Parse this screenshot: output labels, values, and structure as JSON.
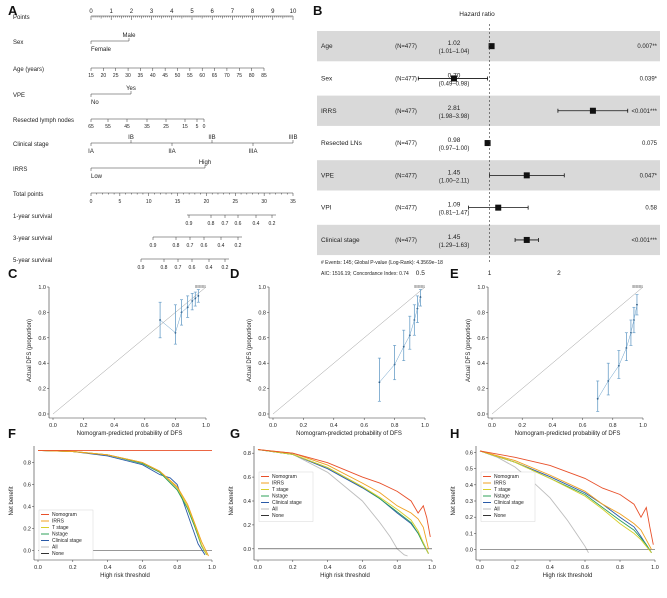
{
  "colors": {
    "nomogram": "#e8502a",
    "irrs": "#f0a020",
    "tstage": "#d8cf2a",
    "nstage": "#2fa05a",
    "clinical": "#2a5aa8",
    "all": "#bdbdbd",
    "none": "#333333",
    "calib": "#6a9fc8",
    "band": "#d9d9d9"
  },
  "panels": {
    "A": "A",
    "B": "B",
    "C": "C",
    "D": "D",
    "E": "E",
    "F": "F",
    "G": "G",
    "H": "H"
  },
  "nomogram": {
    "rows": [
      {
        "label": "Points",
        "ticks": [
          "0",
          "1",
          "2",
          "3",
          "4",
          "5",
          "6",
          "7",
          "8",
          "9",
          "10"
        ]
      },
      {
        "label": "Sex",
        "upper": "Male",
        "lower": "Female"
      },
      {
        "label": "Age (years)",
        "ticks": [
          "15",
          "20",
          "25",
          "30",
          "35",
          "40",
          "45",
          "50",
          "55",
          "60",
          "65",
          "70",
          "75",
          "80",
          "85"
        ]
      },
      {
        "label": "VPE",
        "upper": "Yes",
        "lower": "No"
      },
      {
        "label": "Resected lymph nodes",
        "ticks": [
          "65",
          "55",
          "45",
          "35",
          "25",
          "15",
          "5",
          "0"
        ]
      },
      {
        "label": "Clinical stage",
        "upper": [
          "IB",
          "IIB",
          "IIIB"
        ],
        "lower": [
          "IA",
          "IIA",
          "IIIA"
        ]
      },
      {
        "label": "IRRS",
        "upper": "High",
        "lower": "Low"
      },
      {
        "label": "Total points",
        "ticks": [
          "0",
          "5",
          "10",
          "15",
          "20",
          "25",
          "30",
          "35"
        ]
      },
      {
        "label": "1-year survival",
        "ticks": [
          "0.9",
          "0.8",
          "0.7",
          "0.6",
          "0.4",
          "0.2"
        ]
      },
      {
        "label": "3-year survival",
        "ticks": [
          "0.9",
          "0.8",
          "0.7",
          "0.6",
          "0.4",
          "0.2"
        ]
      },
      {
        "label": "5-year survival",
        "ticks": [
          "0.9",
          "0.8",
          "0.7",
          "0.6",
          "0.4",
          "0.2"
        ]
      }
    ]
  },
  "chart_data": [
    {
      "type": "forest",
      "title": "Hazard ratio",
      "rows": [
        {
          "name": "Age",
          "n": "(N=477)",
          "hr": 1.02,
          "hr_label": "1.02",
          "ci": [
            1.01,
            1.04
          ],
          "ci_label": "(1.01–1.04)",
          "p": "0.007**",
          "shaded": true
        },
        {
          "name": "Sex",
          "n": "(N=477)",
          "hr": 0.7,
          "hr_label": "0.70",
          "ci": [
            0.49,
            0.98
          ],
          "ci_label": "(0.49–0.98)",
          "p": "0.039*",
          "shaded": false
        },
        {
          "name": "IRRS",
          "n": "(N=477)",
          "hr": 2.81,
          "hr_label": "2.81",
          "ci": [
            1.98,
            3.98
          ],
          "ci_label": "(1.98–3.98)",
          "p": "<0.001***",
          "shaded": true
        },
        {
          "name": "Resected LNs",
          "n": "(N=477)",
          "hr": 0.98,
          "hr_label": "0.98",
          "ci": [
            0.97,
            1.0
          ],
          "ci_label": "(0.97–1.00)",
          "p": "0.075",
          "shaded": false
        },
        {
          "name": "VPE",
          "n": "(N=477)",
          "hr": 1.45,
          "hr_label": "1.45",
          "ci": [
            1.0,
            2.11
          ],
          "ci_label": "(1.00–2.11)",
          "p": "0.047*",
          "shaded": true
        },
        {
          "name": "VPI",
          "n": "(N=477)",
          "hr": 1.09,
          "hr_label": "1.09",
          "ci": [
            0.81,
            1.47
          ],
          "ci_label": "(0.81–1.47)",
          "p": "0.58",
          "shaded": false
        },
        {
          "name": "Clinical stage",
          "n": "(N=477)",
          "hr": 1.45,
          "hr_label": "1.45",
          "ci": [
            1.29,
            1.63
          ],
          "ci_label": "(1.29–1.63)",
          "p": "<0.001***",
          "shaded": true
        }
      ],
      "footnote1": "# Events: 145; Global P-value (Log-Rank): 4.3569e−18",
      "footnote2": "AIC: 1516.19; Concordance Index: 0.74",
      "x_ticks": [
        "0.5",
        "1",
        "2"
      ]
    },
    {
      "type": "calibration",
      "panel": "C",
      "xlabel": "Nomogram-predicted probability of DFS",
      "ylabel": "Actual DFS (proportion)",
      "x_ticks": [
        "0.0",
        "0.2",
        "0.4",
        "0.6",
        "0.8",
        "1.0"
      ],
      "y_ticks": [
        "0.0",
        "0.2",
        "0.4",
        "0.6",
        "0.8",
        "1.0"
      ],
      "points": [
        {
          "x": 0.7,
          "y": 0.74,
          "lo": 0.6,
          "hi": 0.88
        },
        {
          "x": 0.8,
          "y": 0.64,
          "lo": 0.55,
          "hi": 0.86
        },
        {
          "x": 0.84,
          "y": 0.8,
          "lo": 0.7,
          "hi": 0.9
        },
        {
          "x": 0.88,
          "y": 0.84,
          "lo": 0.76,
          "hi": 0.93
        },
        {
          "x": 0.91,
          "y": 0.89,
          "lo": 0.82,
          "hi": 0.95
        },
        {
          "x": 0.93,
          "y": 0.91,
          "lo": 0.85,
          "hi": 0.96
        },
        {
          "x": 0.95,
          "y": 0.93,
          "lo": 0.88,
          "hi": 0.98
        }
      ]
    },
    {
      "type": "calibration",
      "panel": "D",
      "xlabel": "Nomogram-predicted probability of DFS",
      "ylabel": "Actual DFS (proportion)",
      "x_ticks": [
        "0.0",
        "0.2",
        "0.4",
        "0.6",
        "0.8",
        "1.0"
      ],
      "y_ticks": [
        "0.0",
        "0.2",
        "0.4",
        "0.6",
        "0.8",
        "1.0"
      ],
      "points": [
        {
          "x": 0.7,
          "y": 0.25,
          "lo": 0.1,
          "hi": 0.44
        },
        {
          "x": 0.8,
          "y": 0.39,
          "lo": 0.27,
          "hi": 0.54
        },
        {
          "x": 0.86,
          "y": 0.53,
          "lo": 0.42,
          "hi": 0.66
        },
        {
          "x": 0.9,
          "y": 0.62,
          "lo": 0.51,
          "hi": 0.77
        },
        {
          "x": 0.93,
          "y": 0.74,
          "lo": 0.62,
          "hi": 0.86
        },
        {
          "x": 0.95,
          "y": 0.83,
          "lo": 0.72,
          "hi": 0.93
        },
        {
          "x": 0.97,
          "y": 0.92,
          "lo": 0.85,
          "hi": 0.98
        }
      ]
    },
    {
      "type": "calibration",
      "panel": "E",
      "xlabel": "Nomogram-predicted probability of DFS",
      "ylabel": "Actual DFS (proportion)",
      "x_ticks": [
        "0.0",
        "0.2",
        "0.4",
        "0.6",
        "0.8",
        "1.0"
      ],
      "y_ticks": [
        "0.0",
        "0.2",
        "0.4",
        "0.6",
        "0.8",
        "1.0"
      ],
      "points": [
        {
          "x": 0.7,
          "y": 0.12,
          "lo": 0.02,
          "hi": 0.26
        },
        {
          "x": 0.77,
          "y": 0.26,
          "lo": 0.15,
          "hi": 0.4
        },
        {
          "x": 0.84,
          "y": 0.38,
          "lo": 0.28,
          "hi": 0.5
        },
        {
          "x": 0.89,
          "y": 0.52,
          "lo": 0.42,
          "hi": 0.64
        },
        {
          "x": 0.92,
          "y": 0.64,
          "lo": 0.54,
          "hi": 0.74
        },
        {
          "x": 0.94,
          "y": 0.74,
          "lo": 0.64,
          "hi": 0.84
        },
        {
          "x": 0.96,
          "y": 0.86,
          "lo": 0.78,
          "hi": 0.94
        }
      ]
    },
    {
      "type": "line",
      "panel": "F",
      "xlabel": "High risk threshold",
      "ylabel": "Net benefit",
      "x_ticks": [
        "0.0",
        "0.2",
        "0.4",
        "0.6",
        "0.8",
        "1.0"
      ],
      "y_ticks": [
        "0.0",
        "0.2",
        "0.4",
        "0.6",
        "0.8"
      ],
      "ylim": [
        -0.05,
        0.95
      ],
      "legend": [
        "Nomogram",
        "IRRS",
        "T stage",
        "Nstage",
        "Clinical stage",
        "All",
        "None"
      ],
      "series": [
        {
          "name": "Nomogram",
          "x": [
            0,
            0.2,
            0.4,
            0.6,
            0.8,
            1.0
          ],
          "y": [
            0.91,
            0.91,
            0.91,
            0.91,
            0.91,
            0.91
          ]
        },
        {
          "name": "IRRS",
          "x": [
            0,
            0.2,
            0.4,
            0.6,
            0.7,
            0.8,
            0.86,
            0.9,
            0.94,
            0.98
          ],
          "y": [
            0.91,
            0.9,
            0.87,
            0.8,
            0.72,
            0.58,
            0.42,
            0.25,
            0.08,
            -0.05
          ]
        },
        {
          "name": "T stage",
          "x": [
            0,
            0.2,
            0.4,
            0.6,
            0.7,
            0.8,
            0.86,
            0.9,
            0.94,
            0.97
          ],
          "y": [
            0.91,
            0.9,
            0.87,
            0.8,
            0.72,
            0.57,
            0.4,
            0.24,
            0.05,
            -0.04
          ]
        },
        {
          "name": "Nstage",
          "x": [
            0,
            0.2,
            0.4,
            0.6,
            0.7,
            0.8,
            0.86,
            0.9,
            0.94,
            0.97
          ],
          "y": [
            0.91,
            0.9,
            0.87,
            0.79,
            0.71,
            0.55,
            0.38,
            0.22,
            0.04,
            -0.04
          ]
        },
        {
          "name": "Clinical stage",
          "x": [
            0,
            0.2,
            0.4,
            0.6,
            0.7,
            0.76,
            0.8,
            0.84,
            0.88,
            0.92,
            0.96
          ],
          "y": [
            0.91,
            0.9,
            0.86,
            0.78,
            0.69,
            0.66,
            0.6,
            0.42,
            0.24,
            0.06,
            -0.04
          ]
        },
        {
          "name": "All",
          "x": [
            0,
            0.2,
            0.4,
            0.6,
            0.7,
            0.8,
            0.86,
            0.9,
            0.94,
            0.97
          ],
          "y": [
            0.91,
            0.9,
            0.87,
            0.8,
            0.72,
            0.56,
            0.38,
            0.22,
            0.04,
            -0.04
          ]
        },
        {
          "name": "None",
          "x": [
            0,
            1.0
          ],
          "y": [
            0,
            0
          ]
        }
      ]
    },
    {
      "type": "line",
      "panel": "G",
      "xlabel": "High risk threshold",
      "ylabel": "Net benefit",
      "x_ticks": [
        "0.0",
        "0.2",
        "0.4",
        "0.6",
        "0.8",
        "1.0"
      ],
      "y_ticks": [
        "0.0",
        "0.2",
        "0.4",
        "0.6",
        "0.8"
      ],
      "ylim": [
        -0.06,
        0.86
      ],
      "legend": [
        "Nomogram",
        "IRRS",
        "T stage",
        "Nstage",
        "Clinical stage",
        "All",
        "None"
      ],
      "series": [
        {
          "name": "Nomogram",
          "x": [
            0,
            0.2,
            0.4,
            0.6,
            0.7,
            0.8,
            0.88,
            0.92,
            0.95,
            0.97,
            0.99
          ],
          "y": [
            0.83,
            0.8,
            0.72,
            0.6,
            0.55,
            0.48,
            0.4,
            0.3,
            0.36,
            0.26,
            0.1
          ]
        },
        {
          "name": "IRRS",
          "x": [
            0,
            0.2,
            0.4,
            0.6,
            0.7,
            0.8,
            0.88,
            0.92,
            0.95,
            0.98
          ],
          "y": [
            0.83,
            0.8,
            0.7,
            0.55,
            0.47,
            0.36,
            0.3,
            0.25,
            0.18,
            0.0
          ]
        },
        {
          "name": "T stage",
          "x": [
            0,
            0.2,
            0.4,
            0.6,
            0.7,
            0.8,
            0.88,
            0.92,
            0.95,
            0.98
          ],
          "y": [
            0.83,
            0.79,
            0.68,
            0.52,
            0.43,
            0.33,
            0.24,
            0.15,
            0.05,
            -0.04
          ]
        },
        {
          "name": "Nstage",
          "x": [
            0,
            0.2,
            0.4,
            0.6,
            0.7,
            0.8,
            0.88,
            0.92,
            0.95,
            0.98
          ],
          "y": [
            0.83,
            0.79,
            0.68,
            0.52,
            0.42,
            0.31,
            0.22,
            0.13,
            0.04,
            -0.04
          ]
        },
        {
          "name": "Clinical stage",
          "x": [
            0,
            0.2,
            0.4,
            0.6,
            0.7,
            0.8,
            0.88,
            0.92,
            0.95,
            0.98
          ],
          "y": [
            0.83,
            0.79,
            0.67,
            0.51,
            0.42,
            0.3,
            0.21,
            0.13,
            0.05,
            -0.04
          ]
        },
        {
          "name": "All",
          "x": [
            0,
            0.2,
            0.4,
            0.6,
            0.7,
            0.76,
            0.8,
            0.84,
            0.86
          ],
          "y": [
            0.83,
            0.79,
            0.64,
            0.4,
            0.22,
            0.1,
            0.0,
            -0.05,
            -0.06
          ]
        },
        {
          "name": "None",
          "x": [
            0,
            1.0
          ],
          "y": [
            0,
            0
          ]
        }
      ]
    },
    {
      "type": "line",
      "panel": "H",
      "xlabel": "High risk threshold",
      "ylabel": "Net benefit",
      "x_ticks": [
        "0.0",
        "0.2",
        "0.4",
        "0.6",
        "0.8",
        "1.0"
      ],
      "y_ticks": [
        "0.0",
        "0.1",
        "0.2",
        "0.3",
        "0.4",
        "0.5",
        "0.6"
      ],
      "ylim": [
        -0.04,
        0.64
      ],
      "legend": [
        "Nomogram",
        "IRRS",
        "T stage",
        "Nstage",
        "Clinical stage",
        "All",
        "None"
      ],
      "series": [
        {
          "name": "Nomogram",
          "x": [
            0,
            0.2,
            0.4,
            0.6,
            0.7,
            0.8,
            0.88,
            0.92,
            0.95,
            0.97,
            0.99
          ],
          "y": [
            0.61,
            0.57,
            0.52,
            0.44,
            0.38,
            0.34,
            0.28,
            0.2,
            0.26,
            0.14,
            0.03
          ]
        },
        {
          "name": "IRRS",
          "x": [
            0,
            0.2,
            0.4,
            0.6,
            0.7,
            0.8,
            0.88,
            0.92,
            0.95,
            0.98
          ],
          "y": [
            0.61,
            0.55,
            0.46,
            0.36,
            0.28,
            0.22,
            0.16,
            0.12,
            0.06,
            0.0
          ]
        },
        {
          "name": "T stage",
          "x": [
            0,
            0.2,
            0.4,
            0.6,
            0.7,
            0.8,
            0.88,
            0.92,
            0.95,
            0.98
          ],
          "y": [
            0.61,
            0.54,
            0.44,
            0.33,
            0.25,
            0.16,
            0.1,
            0.06,
            0.02,
            -0.02
          ]
        },
        {
          "name": "Nstage",
          "x": [
            0,
            0.2,
            0.4,
            0.6,
            0.7,
            0.8,
            0.88,
            0.92,
            0.95,
            0.98
          ],
          "y": [
            0.61,
            0.54,
            0.44,
            0.34,
            0.26,
            0.18,
            0.12,
            0.07,
            0.03,
            -0.02
          ]
        },
        {
          "name": "Clinical stage",
          "x": [
            0,
            0.2,
            0.4,
            0.6,
            0.7,
            0.8,
            0.88,
            0.92,
            0.95,
            0.98
          ],
          "y": [
            0.61,
            0.54,
            0.45,
            0.35,
            0.28,
            0.2,
            0.14,
            0.08,
            0.03,
            -0.02
          ]
        },
        {
          "name": "All",
          "x": [
            0,
            0.1,
            0.2,
            0.3,
            0.4,
            0.5,
            0.55,
            0.6,
            0.62
          ],
          "y": [
            0.61,
            0.57,
            0.51,
            0.42,
            0.32,
            0.18,
            0.1,
            0.02,
            -0.02
          ]
        },
        {
          "name": "None",
          "x": [
            0,
            1.0
          ],
          "y": [
            0,
            0
          ]
        }
      ]
    }
  ]
}
